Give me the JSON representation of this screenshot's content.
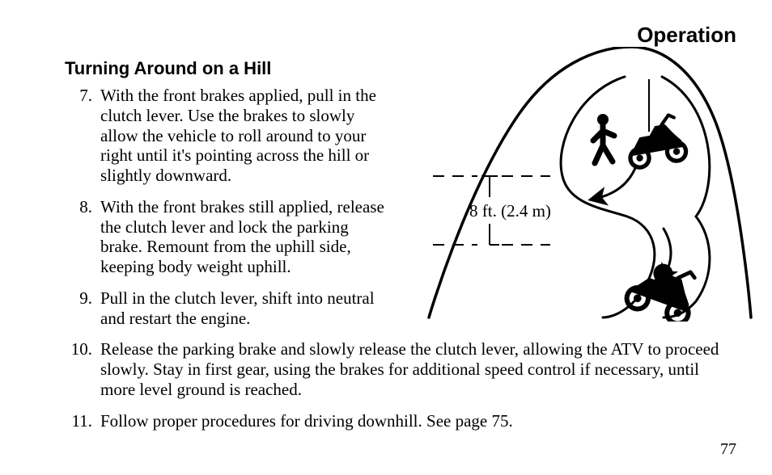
{
  "chapter_title": "Operation",
  "section_title": "Turning Around on a Hill",
  "list_items": [
    {
      "n": "7.",
      "narrow": true,
      "text": "With the front brakes applied, pull in the clutch lever. Use the brakes to slowly allow the vehicle to roll around to your right until it's pointing across the hill or slightly downward."
    },
    {
      "n": "8.",
      "narrow": true,
      "text": "With the front brakes still applied, release the clutch lever and lock the parking brake. Remount from the uphill side, keeping body weight uphill."
    },
    {
      "n": "9.",
      "narrow": true,
      "text": "Pull in the clutch lever, shift into neutral and restart the engine."
    },
    {
      "n": "10.",
      "narrow": false,
      "text": "Release the parking brake and slowly release the clutch lever, allowing the ATV to proceed slowly. Stay in first gear, using the brakes for additional speed control if necessary, until more level ground is reached."
    },
    {
      "n": "11.",
      "narrow": false,
      "text": "Follow proper procedures for driving downhill. See page 75."
    }
  ],
  "page_number": "77",
  "figure": {
    "measurement_label": "8 ft. (2.4 m)",
    "stroke_color": "#000000",
    "fill_color": "#000000",
    "background_color": "#ffffff",
    "hill_stroke_width": 3.5,
    "path_stroke_width": 3,
    "dash_stroke_width": 2,
    "arrow_stroke_width": 3,
    "label_fontsize": 21,
    "dash_pattern": "14 10"
  }
}
